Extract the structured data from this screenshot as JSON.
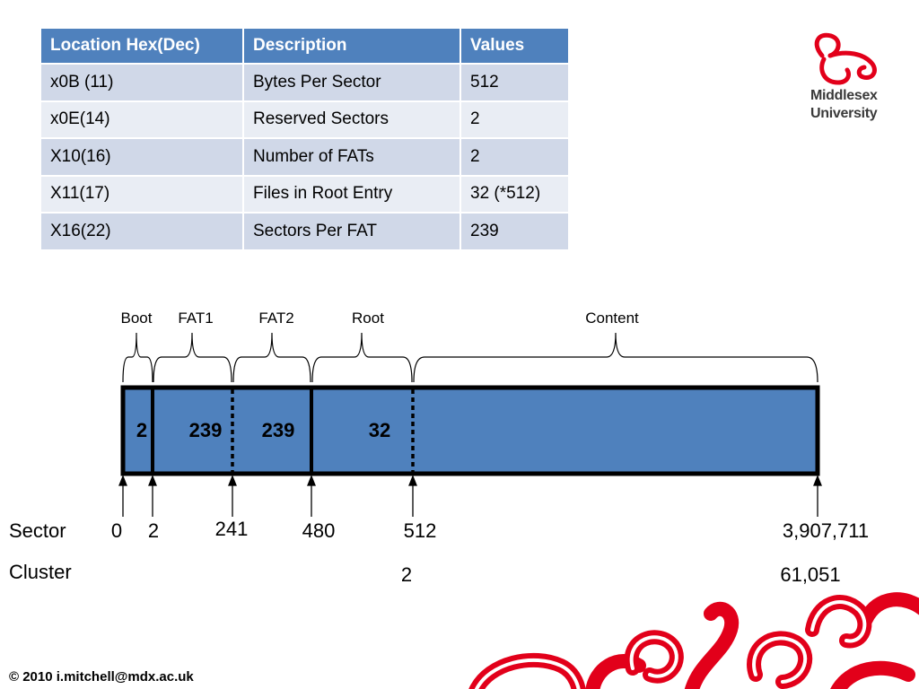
{
  "table": {
    "headers": [
      "Location Hex(Dec)",
      "Description",
      "Values"
    ],
    "rows": [
      [
        "x0B (11)",
        "Bytes Per Sector",
        "512"
      ],
      [
        "x0E(14)",
        "Reserved Sectors",
        "2"
      ],
      [
        "X10(16)",
        "Number of FATs",
        "2"
      ],
      [
        "X11(17)",
        "Files in Root Entry",
        "32 (*512)"
      ],
      [
        "X16(22)",
        "Sectors Per FAT",
        "239"
      ]
    ]
  },
  "logo": {
    "name_line1": "Middlesex",
    "name_line2": "University"
  },
  "diagram": {
    "regions": [
      {
        "label": "Boot",
        "value": "2"
      },
      {
        "label": "FAT1",
        "value": "239"
      },
      {
        "label": "FAT2",
        "value": "239"
      },
      {
        "label": "Root",
        "value": "32"
      },
      {
        "label": "Content"
      }
    ],
    "sector_label": "Sector",
    "sector_marks": [
      "0",
      "2",
      "241",
      "480",
      "512",
      "3,907,711"
    ],
    "cluster_label": "Cluster",
    "cluster_marks": [
      "2",
      "61,051"
    ]
  },
  "footer": "© 2010 i.mitchell@mdx.ac.uk",
  "colors": {
    "accent_blue": "#4F81BD",
    "row_light": "#D0D8E8",
    "row_lighter": "#E9EDF4",
    "brand_red": "#E2001A"
  }
}
